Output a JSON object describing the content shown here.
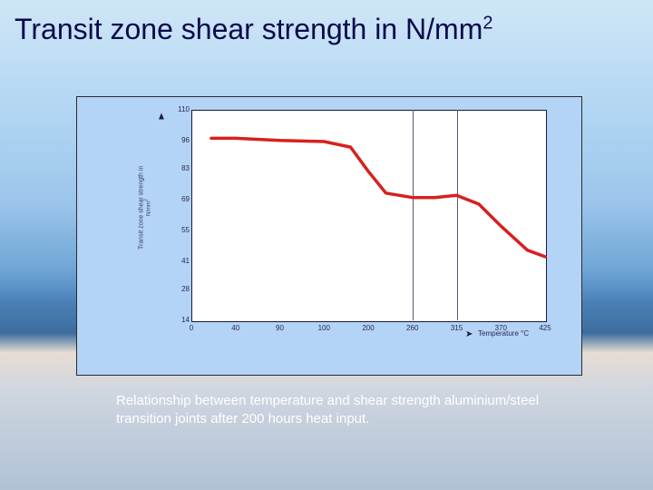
{
  "title_html": "Transit zone shear strength in N/mm<sup>2</sup>",
  "caption": "Relationship between temperature and shear strength aluminium/steel transition joints after 200 hours heat input.",
  "chart": {
    "type": "line",
    "background_color": "#ffffff",
    "panel_color": "#b3d3f7",
    "line_color": "#d72020",
    "line_width": 3.5,
    "vline_color": "#5a5a7a",
    "axis_text_color": "#2a2a55",
    "tick_fontsize": 8,
    "axis_title_fontsize": 7,
    "x": {
      "label": "Temperature °C",
      "ticks": [
        0,
        40,
        90,
        100,
        200,
        260,
        315,
        370,
        425
      ]
    },
    "y": {
      "label": "Transit zone shear strength in N/mm²",
      "ticks": [
        14,
        28,
        41,
        55,
        69,
        83,
        96,
        110
      ]
    },
    "vlines_at_xtick_index": [
      5,
      6
    ],
    "points": [
      {
        "xi": 0.45,
        "y": 97
      },
      {
        "xi": 1,
        "y": 97
      },
      {
        "xi": 2,
        "y": 96
      },
      {
        "xi": 3,
        "y": 95.5
      },
      {
        "xi": 3.6,
        "y": 93
      },
      {
        "xi": 4,
        "y": 82
      },
      {
        "xi": 4.4,
        "y": 72
      },
      {
        "xi": 5,
        "y": 70
      },
      {
        "xi": 5.5,
        "y": 70
      },
      {
        "xi": 6,
        "y": 71
      },
      {
        "xi": 6.5,
        "y": 67
      },
      {
        "xi": 7,
        "y": 57
      },
      {
        "xi": 7.6,
        "y": 46
      },
      {
        "xi": 8,
        "y": 43
      }
    ]
  }
}
